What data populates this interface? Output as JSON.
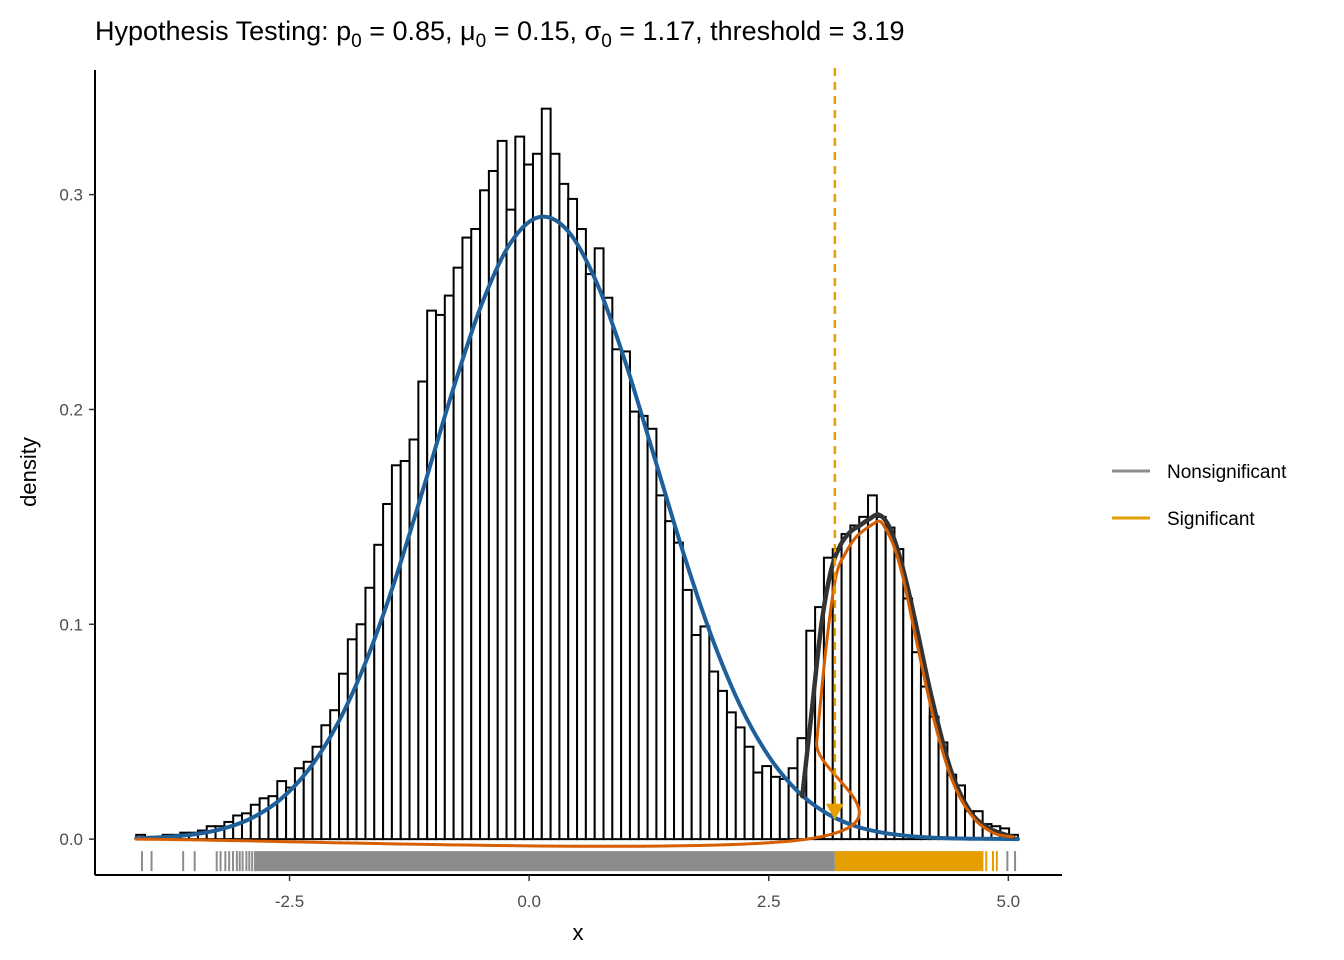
{
  "chart_data": {
    "type": "histogram",
    "title_parts": [
      "Hypothesis Testing: p",
      "0",
      " = 0.85, μ",
      "0",
      " = 0.15, σ",
      "0",
      " = 1.17, threshold = 3.19"
    ],
    "x_label": "x",
    "y_label": "density",
    "bins": [
      -4.1,
      -4.008,
      -3.916,
      -3.824,
      -3.732,
      -3.64,
      -3.548,
      -3.456,
      -3.364,
      -3.272,
      -3.18,
      -3.088,
      -2.996,
      -2.904,
      -2.812,
      -2.72,
      -2.628,
      -2.536,
      -2.444,
      -2.352,
      -2.26,
      -2.168,
      -2.076,
      -1.984,
      -1.892,
      -1.8,
      -1.708,
      -1.616,
      -1.524,
      -1.432,
      -1.34,
      -1.248,
      -1.156,
      -1.064,
      -0.972,
      -0.88,
      -0.788,
      -0.696,
      -0.604,
      -0.512,
      -0.42,
      -0.328,
      -0.236,
      -0.144,
      -0.052,
      0.04,
      0.132,
      0.224,
      0.316,
      0.408,
      0.5,
      0.592,
      0.684,
      0.776,
      0.868,
      0.96,
      1.052,
      1.144,
      1.236,
      1.328,
      1.42,
      1.512,
      1.604,
      1.696,
      1.788,
      1.88,
      1.972,
      2.064,
      2.156,
      2.248,
      2.34,
      2.432,
      2.524,
      2.616,
      2.708,
      2.8,
      2.892,
      2.984,
      3.076,
      3.168,
      3.26,
      3.352,
      3.444,
      3.536,
      3.628,
      3.72,
      3.812,
      3.904,
      3.996,
      4.088,
      4.18,
      4.272,
      4.364,
      4.456,
      4.548,
      4.64,
      4.732,
      4.824,
      4.916,
      5.008,
      5.1
    ],
    "values": [
      0.002,
      0.001,
      0.001,
      0.002,
      0.002,
      0.003,
      0.003,
      0.004,
      0.006,
      0.006,
      0.008,
      0.011,
      0.012,
      0.016,
      0.019,
      0.02,
      0.027,
      0.024,
      0.033,
      0.036,
      0.043,
      0.053,
      0.06,
      0.077,
      0.093,
      0.1,
      0.117,
      0.137,
      0.156,
      0.174,
      0.176,
      0.186,
      0.213,
      0.246,
      0.244,
      0.253,
      0.266,
      0.28,
      0.284,
      0.302,
      0.311,
      0.325,
      0.293,
      0.327,
      0.314,
      0.319,
      0.34,
      0.319,
      0.305,
      0.298,
      0.284,
      0.263,
      0.275,
      0.252,
      0.228,
      0.227,
      0.199,
      0.197,
      0.191,
      0.16,
      0.148,
      0.138,
      0.116,
      0.095,
      0.099,
      0.078,
      0.069,
      0.059,
      0.052,
      0.043,
      0.031,
      0.034,
      0.029,
      0.028,
      0.033,
      0.047,
      0.097,
      0.108,
      0.131,
      0.135,
      0.142,
      0.146,
      0.15,
      0.16,
      0.15,
      0.145,
      0.135,
      0.112,
      0.087,
      0.071,
      0.057,
      0.045,
      0.03,
      0.025,
      0.013,
      0.013,
      0.007,
      0.006,
      0.005,
      0.002
    ],
    "bar_color": "#ffffff",
    "bar_edge_color": "#000000",
    "curves": [
      {
        "color": "#1f5f9a",
        "width": 4,
        "x": [
          -4.1,
          -3.8,
          -3.5,
          -3.2,
          -2.9,
          -2.6,
          -2.3,
          -2.0,
          -1.7,
          -1.4,
          -1.1,
          -0.8,
          -0.5,
          -0.2,
          0.1,
          0.4,
          0.7,
          1.0,
          1.3,
          1.6,
          1.9,
          2.2,
          2.5,
          2.8,
          3.1,
          3.4,
          3.7,
          4.0,
          4.3,
          4.6,
          4.9,
          5.1
        ],
        "values": [
          0.0004,
          0.001,
          0.0022,
          0.0048,
          0.0097,
          0.0183,
          0.0324,
          0.0536,
          0.083,
          0.1205,
          0.1638,
          0.2084,
          0.2484,
          0.2771,
          0.2895,
          0.2833,
          0.2595,
          0.2226,
          0.1788,
          0.1345,
          0.0947,
          0.0624,
          0.0386,
          0.0223,
          0.0121,
          0.0061,
          0.0029,
          0.0013,
          0.0005,
          0.0002,
          0.0001,
          0
        ]
      },
      {
        "color": "#333333",
        "width": 4.5,
        "x": [
          2.85,
          2.95,
          3.05,
          3.15,
          3.25,
          3.35,
          3.45,
          3.55,
          3.65,
          3.75,
          3.85,
          3.95,
          4.05,
          4.2,
          4.4,
          4.6,
          4.8,
          5.05
        ],
        "values": [
          0.02,
          0.06,
          0.1,
          0.125,
          0.137,
          0.143,
          0.146,
          0.149,
          0.151,
          0.146,
          0.134,
          0.117,
          0.097,
          0.066,
          0.032,
          0.013,
          0.005,
          0.001
        ]
      },
      {
        "color": "#d55e00",
        "width": 3,
        "x": [
          -4.1,
          2.9,
          3.0,
          3.1,
          3.2,
          3.3,
          3.4,
          3.5,
          3.6,
          3.65,
          3.7,
          3.8,
          3.9,
          4.0,
          4.1,
          4.2,
          4.3,
          4.4,
          4.5,
          4.6,
          4.7,
          4.8,
          4.9,
          5.05
        ],
        "values": [
          0,
          0,
          0.045,
          0.09,
          0.122,
          0.133,
          0.14,
          0.144,
          0.147,
          0.148,
          0.146,
          0.137,
          0.122,
          0.101,
          0.08,
          0.06,
          0.043,
          0.029,
          0.019,
          0.012,
          0.007,
          0.004,
          0.002,
          0.001
        ]
      }
    ],
    "series": [
      {
        "name": "Nonsignificant",
        "color": "#8c8c8c",
        "rug_x": [
          -4.04,
          -3.94,
          -3.61,
          -3.49,
          -3.26,
          -3.22,
          -3.17,
          -3.13,
          -3.09,
          -3.05,
          -3.02,
          -2.99,
          -2.95,
          -2.92,
          -2.89,
          -2.86,
          4.99,
          5.07
        ],
        "rug_range": [
          -2.85,
          3.19
        ]
      },
      {
        "name": "Significant",
        "color": "#E69F00",
        "rug_x": [
          4.77,
          4.84,
          4.88
        ],
        "rug_range": [
          3.19,
          4.74
        ]
      }
    ],
    "threshold": 3.19,
    "threshold_color": "#E69F00",
    "threshold_marker_y": 0.009,
    "xlim": [
      -4.53,
      5.56
    ],
    "xticks": [
      -2.5,
      {
        "value": 0,
        "label": "0.0"
      },
      2.5,
      {
        "value": 5,
        "label": "5.0"
      }
    ],
    "ylim": [
      -0.0167,
      0.358
    ],
    "yticks": [
      {
        "value": 0,
        "label": "0.0"
      },
      0.1,
      0.2,
      0.3
    ],
    "grid": false,
    "legend": "right"
  }
}
